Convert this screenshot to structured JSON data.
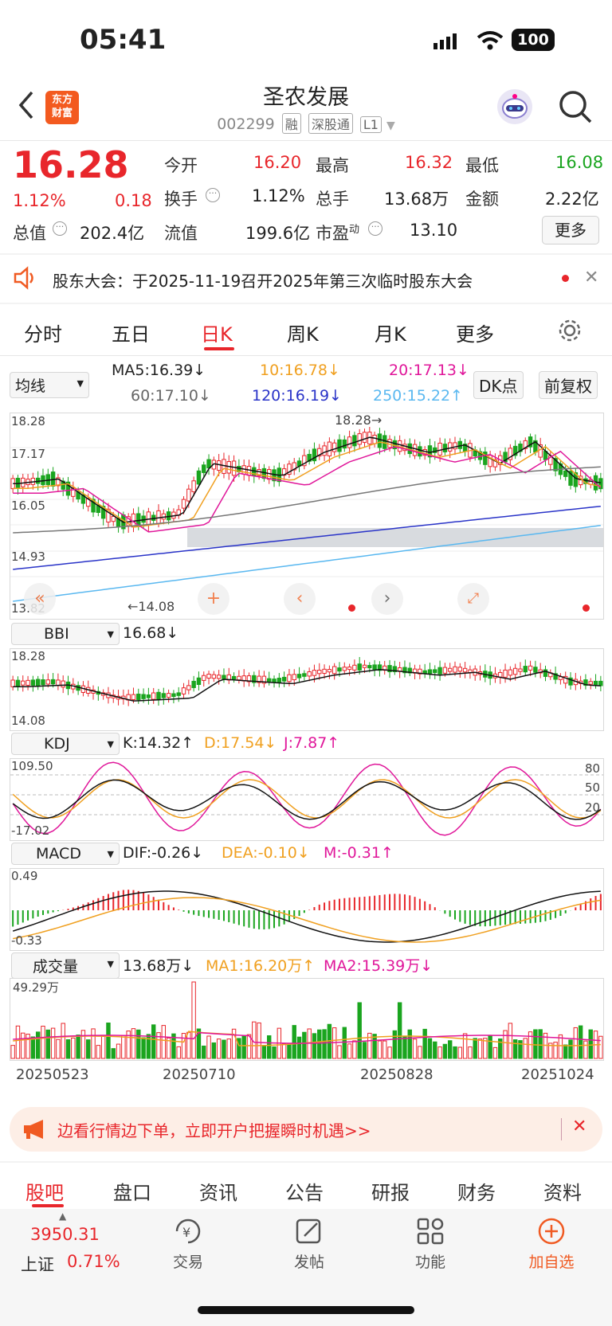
{
  "status": {
    "time": "05:41",
    "battery": "100"
  },
  "header": {
    "title": "圣农发展",
    "code": "002299",
    "tags": [
      "融",
      "深股通",
      "L1"
    ],
    "logo_line1": "东方",
    "logo_line2": "财富"
  },
  "quote": {
    "price": "16.28",
    "change_pct": "1.12%",
    "change": "0.18",
    "open_label": "今开",
    "open": "16.20",
    "high_label": "最高",
    "high": "16.32",
    "low_label": "最低",
    "low": "16.08",
    "turnover_label": "换手",
    "turnover": "1.12%",
    "volume_label": "总手",
    "volume": "13.68万",
    "amount_label": "金额",
    "amount": "2.22亿",
    "mktcap_label": "总值",
    "mktcap": "202.4亿",
    "float_label": "流值",
    "float": "199.6亿",
    "pe_label": "市盈",
    "pe_sup": "动",
    "pe": "13.10",
    "more_label": "更多"
  },
  "notice": {
    "text": "股东大会：于2025-11-19召开2025年第三次临时股东大会"
  },
  "period_tabs": [
    "分时",
    "五日",
    "日K",
    "周K",
    "月K",
    "更多"
  ],
  "active_tab": "日K",
  "ma_bar": {
    "select": "均线",
    "ma5": "MA5:16.39↓",
    "ma10": "10:16.78↓",
    "ma20": "20:17.13↓",
    "ma60": "60:17.10↓",
    "ma120": "120:16.19↓",
    "ma250": "250:15.22↑",
    "dk_button": "DK点",
    "adjust_button": "前复权"
  },
  "kline": {
    "ylabels": [
      "18.28",
      "17.17",
      "16.05",
      "14.93",
      "13.82"
    ],
    "high_mark": "18.28",
    "low_mark": "14.08"
  },
  "bbi": {
    "select": "BBI",
    "value": "16.68↓",
    "ylabels": [
      "18.28",
      "14.08"
    ]
  },
  "kdj": {
    "select": "KDJ",
    "k": "K:14.32↑",
    "d": "D:17.54↓",
    "j": "J:7.87↑",
    "ylabels": [
      "109.50",
      "-17.02"
    ],
    "rlabels": [
      "80",
      "50",
      "20"
    ]
  },
  "macd": {
    "select": "MACD",
    "dif": "DIF:-0.26↓",
    "dea": "DEA:-0.10↓",
    "m": "M:-0.31↑",
    "ylabels": [
      "0.49",
      "-0.33"
    ]
  },
  "vol": {
    "select": "成交量",
    "value": "13.68万↓",
    "ma1": "MA1:16.20万↑",
    "ma2": "MA2:15.39万↓",
    "ylabel": "49.29万",
    "dates": [
      "20250523",
      "20250710",
      "20250828",
      "20251024"
    ]
  },
  "banner": {
    "text": "边看行情边下单，立即开户把握瞬时机遇>>"
  },
  "bottom_tabs": [
    "股吧",
    "盘口",
    "资讯",
    "公告",
    "研报",
    "财务",
    "资料"
  ],
  "dock": {
    "index_value": "3950.31",
    "index_name": "上证",
    "index_pct": "0.71%",
    "trade": "交易",
    "post": "发帖",
    "func": "功能",
    "add": "加自选"
  },
  "colors": {
    "up": "#e8262b",
    "down": "#1aa51f",
    "ma5": "#111111",
    "ma10": "#f0a020",
    "ma20": "#e0179a",
    "ma60": "#777777",
    "ma120": "#2a34c8",
    "ma250": "#5ab8f0"
  }
}
